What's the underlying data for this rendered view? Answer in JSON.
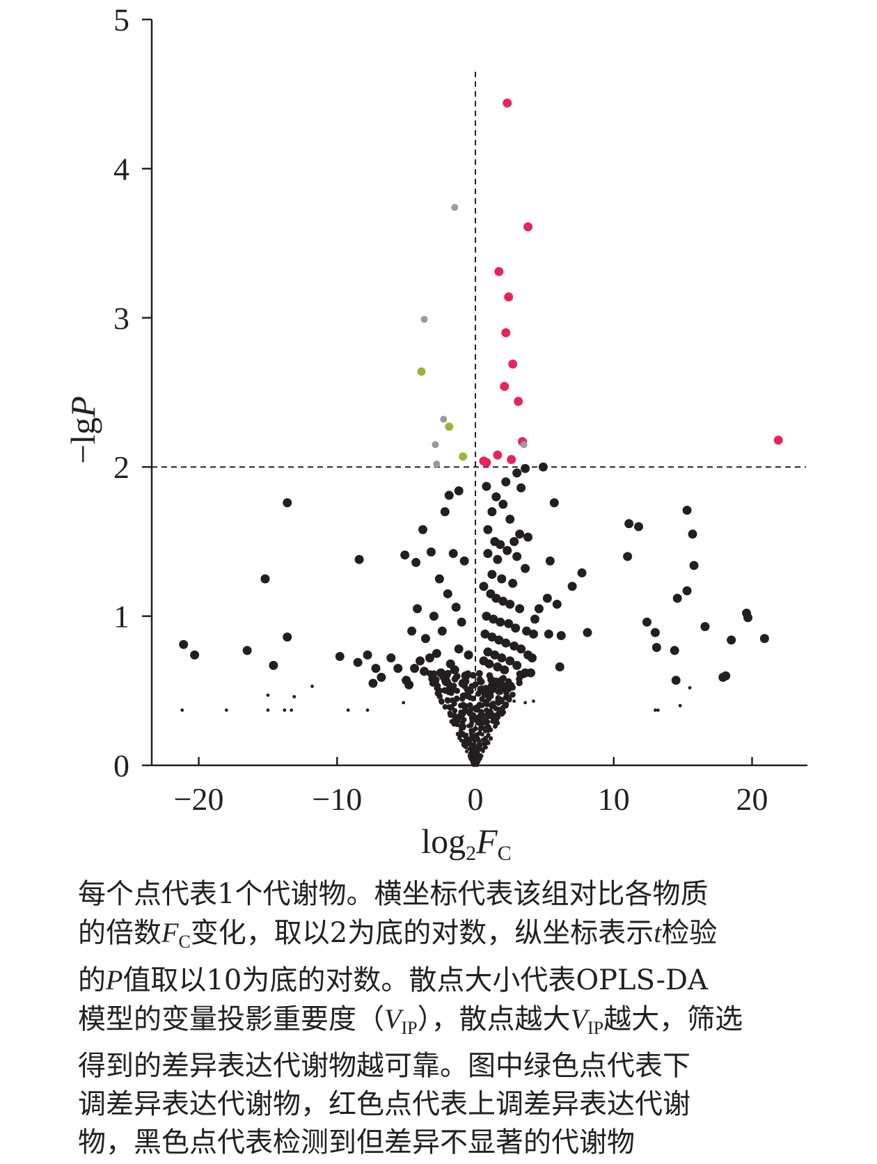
{
  "chart_data": {
    "type": "scatter",
    "xlabel": {
      "base": "log",
      "base_sub": "2",
      "var": "F",
      "var_sub": "C"
    },
    "ylabel": {
      "prefix": "−lg",
      "var": "P"
    },
    "xlim": [
      -23.4,
      24
    ],
    "ylim": [
      0,
      5
    ],
    "xticks": [
      -20,
      -10,
      0,
      10,
      20
    ],
    "yticks": [
      0,
      1,
      2,
      3,
      4,
      5
    ],
    "xtick_labels": [
      "−20",
      "−10",
      "0",
      "10",
      "20"
    ],
    "ytick_labels": [
      "0",
      "1",
      "2",
      "3",
      "4",
      "5"
    ],
    "thresholds": {
      "x": 0,
      "y": 2
    },
    "colors": {
      "up": "#e8245c",
      "down": "#9bb43c",
      "grey": "#9a9a9a",
      "ns": "#231f20"
    },
    "series": [
      {
        "group": "up",
        "points": [
          [
            2.3,
            4.44
          ],
          [
            3.8,
            3.61
          ],
          [
            1.7,
            3.31
          ],
          [
            2.4,
            3.14
          ],
          [
            2.2,
            2.9
          ],
          [
            2.7,
            2.69
          ],
          [
            2.1,
            2.54
          ],
          [
            3.1,
            2.44
          ],
          [
            3.4,
            2.17
          ],
          [
            1.6,
            2.08
          ],
          [
            2.6,
            2.05
          ],
          [
            0.6,
            2.04
          ],
          [
            0.8,
            2.03
          ],
          [
            21.9,
            2.18
          ]
        ]
      },
      {
        "group": "down",
        "points": [
          [
            -3.9,
            2.64
          ],
          [
            -1.9,
            2.27
          ],
          [
            -0.9,
            2.07
          ]
        ]
      },
      {
        "group": "grey",
        "points": [
          [
            -1.5,
            3.74
          ],
          [
            -3.7,
            2.99
          ],
          [
            -2.3,
            2.32
          ],
          [
            -2.9,
            2.15
          ],
          [
            -2.8,
            2.02
          ],
          [
            3.5,
            2.15
          ]
        ]
      },
      {
        "group": "ns",
        "points": [
          [
            -13.6,
            1.76
          ],
          [
            -8.4,
            1.38
          ],
          [
            -15.2,
            1.25
          ],
          [
            -13.6,
            0.86
          ],
          [
            -21.1,
            0.81
          ],
          [
            -20.3,
            0.74
          ],
          [
            -16.5,
            0.77
          ],
          [
            -14.6,
            0.67
          ],
          [
            -9.8,
            0.73
          ],
          [
            -7.8,
            0.74
          ],
          [
            -6.1,
            0.72
          ],
          [
            -8.5,
            0.69
          ],
          [
            -7.2,
            0.65
          ],
          [
            -6.8,
            0.59
          ],
          [
            -7.4,
            0.55
          ],
          [
            -5.6,
            0.65
          ],
          [
            -5.0,
            0.57
          ],
          [
            -4.8,
            0.54
          ],
          [
            -5.1,
            1.41
          ],
          [
            -4.3,
            1.36
          ],
          [
            -3.8,
            1.58
          ],
          [
            -4.2,
            1.05
          ],
          [
            -3.2,
            1.43
          ],
          [
            -2.6,
            1.25
          ],
          [
            -2.2,
            1.7
          ],
          [
            -1.9,
            1.81
          ],
          [
            -1.2,
            1.84
          ],
          [
            -1.6,
            1.42
          ],
          [
            -0.8,
            1.37
          ],
          [
            -2.0,
            1.15
          ],
          [
            -3.0,
            1.0
          ],
          [
            -1.4,
            1.06
          ],
          [
            -1.0,
            0.96
          ],
          [
            -2.4,
            0.9
          ],
          [
            -4.6,
            0.9
          ],
          [
            -3.6,
            0.85
          ],
          [
            -1.2,
            0.78
          ],
          [
            -2.8,
            0.75
          ],
          [
            -3.3,
            0.72
          ],
          [
            -4.0,
            0.7
          ],
          [
            -0.5,
            0.74
          ],
          [
            -1.8,
            0.68
          ],
          [
            -3.7,
            0.63
          ],
          [
            -2.5,
            0.62
          ],
          [
            -1.5,
            0.64
          ],
          [
            -0.7,
            0.6
          ],
          [
            -4.4,
            0.65
          ],
          [
            -2.1,
            0.56
          ],
          [
            -0.9,
            0.55
          ],
          [
            0.8,
            1.87
          ],
          [
            1.5,
            1.8
          ],
          [
            2.2,
            1.9
          ],
          [
            3.0,
            1.96
          ],
          [
            3.3,
            1.86
          ],
          [
            3.6,
            1.99
          ],
          [
            4.9,
            2.0
          ],
          [
            1.2,
            1.7
          ],
          [
            2.0,
            1.75
          ],
          [
            2.5,
            1.65
          ],
          [
            3.2,
            1.55
          ],
          [
            0.9,
            1.58
          ],
          [
            1.4,
            1.5
          ],
          [
            1.8,
            1.48
          ],
          [
            2.8,
            1.5
          ],
          [
            3.8,
            1.53
          ],
          [
            0.9,
            1.42
          ],
          [
            1.6,
            1.38
          ],
          [
            2.3,
            1.44
          ],
          [
            3.0,
            1.4
          ],
          [
            3.6,
            1.32
          ],
          [
            1.2,
            1.28
          ],
          [
            1.9,
            1.25
          ],
          [
            2.7,
            1.22
          ],
          [
            0.6,
            1.2
          ],
          [
            1.1,
            1.15
          ],
          [
            1.5,
            1.12
          ],
          [
            2.0,
            1.1
          ],
          [
            2.5,
            1.08
          ],
          [
            3.2,
            1.05
          ],
          [
            0.8,
            1.0
          ],
          [
            1.3,
            0.98
          ],
          [
            1.8,
            0.96
          ],
          [
            2.4,
            0.95
          ],
          [
            2.9,
            0.92
          ],
          [
            3.7,
            0.9
          ],
          [
            4.2,
            0.88
          ],
          [
            0.7,
            0.88
          ],
          [
            1.2,
            0.86
          ],
          [
            1.7,
            0.84
          ],
          [
            2.2,
            0.82
          ],
          [
            2.8,
            0.8
          ],
          [
            3.3,
            0.78
          ],
          [
            0.9,
            0.76
          ],
          [
            1.4,
            0.74
          ],
          [
            1.9,
            0.72
          ],
          [
            2.5,
            0.7
          ],
          [
            3.8,
            0.74
          ],
          [
            4.1,
            0.72
          ],
          [
            0.6,
            0.7
          ],
          [
            1.0,
            0.68
          ],
          [
            1.6,
            0.66
          ],
          [
            2.1,
            0.64
          ],
          [
            3.0,
            0.67
          ],
          [
            3.6,
            0.62
          ],
          [
            4.0,
            0.62
          ],
          [
            5.7,
            1.76
          ],
          [
            5.4,
            1.37
          ],
          [
            7.7,
            1.29
          ],
          [
            7.0,
            1.2
          ],
          [
            5.2,
            1.12
          ],
          [
            4.6,
            1.05
          ],
          [
            5.9,
            1.08
          ],
          [
            4.3,
            0.98
          ],
          [
            5.3,
            0.88
          ],
          [
            6.2,
            0.87
          ],
          [
            8.1,
            0.89
          ],
          [
            6.1,
            0.66
          ],
          [
            11.1,
            1.62
          ],
          [
            11.8,
            1.6
          ],
          [
            11.0,
            1.4
          ],
          [
            12.4,
            0.96
          ],
          [
            13.0,
            0.89
          ],
          [
            13.1,
            0.79
          ],
          [
            14.4,
            0.77
          ],
          [
            14.6,
            1.12
          ],
          [
            15.3,
            1.71
          ],
          [
            15.7,
            1.55
          ],
          [
            15.8,
            1.34
          ],
          [
            15.3,
            1.17
          ],
          [
            16.6,
            0.93
          ],
          [
            14.5,
            0.57
          ],
          [
            17.9,
            0.59
          ],
          [
            18.1,
            0.6
          ],
          [
            18.5,
            0.84
          ],
          [
            19.6,
            1.02
          ],
          [
            19.7,
            0.99
          ],
          [
            20.9,
            0.85
          ]
        ]
      }
    ]
  },
  "caption": {
    "lines": [
      [
        {
          "t": "每个点代表1个代谢物。横坐标代表该组对比各物质"
        }
      ],
      [
        {
          "t": "的倍数"
        },
        {
          "t": "F",
          "s": "ital"
        },
        {
          "t": "C",
          "s": "sub"
        },
        {
          "t": "变化，取以2为底的对数，纵坐标表示"
        },
        {
          "t": "t",
          "s": "ital"
        },
        {
          "t": "检验"
        }
      ],
      [
        {
          "t": "的"
        },
        {
          "t": "P",
          "s": "ital"
        },
        {
          "t": "值取以10为底的对数。散点大小代表OPLS-DA"
        }
      ],
      [
        {
          "t": "模型的变量投影重要度（"
        },
        {
          "t": "V",
          "s": "ital"
        },
        {
          "t": "IP",
          "s": "sub"
        },
        {
          "t": "），散点越大"
        },
        {
          "t": "V",
          "s": "ital"
        },
        {
          "t": "IP",
          "s": "sub"
        },
        {
          "t": "越大，筛选"
        }
      ],
      [
        {
          "t": "得到的差异表达代谢物越可靠。图中绿色点代表下"
        }
      ],
      [
        {
          "t": "调差异表达代谢物，红色点代表上调差异表达代谢"
        }
      ],
      [
        {
          "t": "物，黑色点代表检测到但差异不显著的代谢物"
        }
      ]
    ]
  }
}
